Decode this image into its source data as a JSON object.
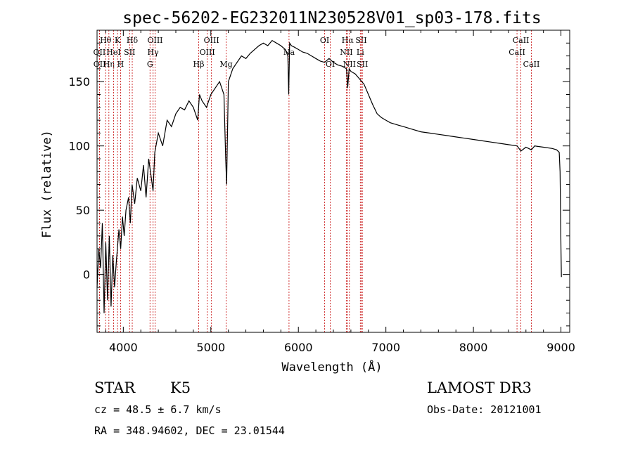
{
  "chart_data": {
    "type": "line",
    "title": "spec-56202-EG232011N230528V01_sp03-178.fits",
    "xlabel": "Wavelength (Å)",
    "ylabel": "Flux (relative)",
    "xlim": [
      3700,
      9100
    ],
    "ylim": [
      -45,
      190
    ],
    "xticks": [
      4000,
      5000,
      6000,
      7000,
      8000,
      9000
    ],
    "yticks": [
      0,
      50,
      100,
      150
    ],
    "grid": false,
    "series": [
      {
        "name": "flux",
        "x": [
          3700,
          3720,
          3740,
          3760,
          3780,
          3800,
          3820,
          3840,
          3860,
          3880,
          3900,
          3920,
          3950,
          3970,
          3990,
          4010,
          4030,
          4060,
          4080,
          4100,
          4130,
          4160,
          4200,
          4230,
          4260,
          4290,
          4320,
          4340,
          4360,
          4400,
          4450,
          4500,
          4550,
          4600,
          4650,
          4700,
          4750,
          4800,
          4850,
          4870,
          4900,
          4950,
          5000,
          5050,
          5100,
          5150,
          5170,
          5180,
          5200,
          5250,
          5300,
          5350,
          5400,
          5450,
          5500,
          5550,
          5600,
          5650,
          5700,
          5750,
          5800,
          5850,
          5880,
          5890,
          5900,
          5920,
          5950,
          6000,
          6050,
          6100,
          6150,
          6200,
          6250,
          6300,
          6350,
          6400,
          6450,
          6500,
          6550,
          6563,
          6580,
          6600,
          6650,
          6700,
          6750,
          6800,
          6850,
          6900,
          6950,
          7000,
          7050,
          7100,
          7150,
          7200,
          7300,
          7400,
          7500,
          7600,
          7700,
          7800,
          7900,
          8000,
          8100,
          8200,
          8300,
          8400,
          8500,
          8542,
          8600,
          8662,
          8700,
          8800,
          8900,
          8950,
          8980,
          8990,
          9000,
          9005
        ],
        "values": [
          -10,
          20,
          5,
          40,
          -30,
          25,
          -20,
          30,
          -25,
          15,
          -10,
          10,
          35,
          20,
          45,
          30,
          50,
          60,
          40,
          70,
          55,
          75,
          65,
          85,
          60,
          90,
          75,
          65,
          95,
          110,
          100,
          120,
          115,
          125,
          130,
          128,
          135,
          130,
          120,
          140,
          135,
          130,
          140,
          145,
          150,
          140,
          90,
          70,
          150,
          160,
          165,
          170,
          168,
          172,
          175,
          178,
          180,
          178,
          182,
          180,
          178,
          175,
          170,
          140,
          180,
          178,
          177,
          175,
          173,
          172,
          170,
          168,
          166,
          165,
          168,
          165,
          163,
          162,
          160,
          145,
          160,
          158,
          156,
          152,
          148,
          140,
          132,
          125,
          122,
          120,
          118,
          117,
          116,
          115,
          113,
          111,
          110,
          109,
          108,
          107,
          106,
          105,
          104,
          103,
          102,
          101,
          100,
          96,
          99,
          97,
          100,
          99,
          98,
          97,
          95,
          80,
          20,
          -2
        ]
      }
    ],
    "spectral_lines": [
      {
        "label": "Hθ",
        "wavelength": 3798,
        "row": 0
      },
      {
        "label": "OII",
        "wavelength": 3727,
        "row": 1
      },
      {
        "label": "OII",
        "wavelength": 3729,
        "row": 2
      },
      {
        "label": "Hη",
        "wavelength": 3835,
        "row": 2
      },
      {
        "label": "HeI",
        "wavelength": 3889,
        "row": 1
      },
      {
        "label": "K",
        "wavelength": 3934,
        "row": 0
      },
      {
        "label": "H",
        "wavelength": 3969,
        "row": 2
      },
      {
        "label": "SII",
        "wavelength": 4072,
        "row": 1
      },
      {
        "label": "Hδ",
        "wavelength": 4102,
        "row": 0
      },
      {
        "label": "OIII",
        "wavelength": 4363,
        "row": 0
      },
      {
        "label": "Hγ",
        "wavelength": 4340,
        "row": 1
      },
      {
        "label": "G",
        "wavelength": 4305,
        "row": 2
      },
      {
        "label": "Hβ",
        "wavelength": 4861,
        "row": 2
      },
      {
        "label": "OIII",
        "wavelength": 5007,
        "row": 0
      },
      {
        "label": "OIII",
        "wavelength": 4959,
        "row": 1
      },
      {
        "label": "Mg",
        "wavelength": 5175,
        "row": 2
      },
      {
        "label": "Na",
        "wavelength": 5893,
        "row": 1
      },
      {
        "label": "OI",
        "wavelength": 6300,
        "row": 0
      },
      {
        "label": "OI",
        "wavelength": 6364,
        "row": 2
      },
      {
        "label": "Hα",
        "wavelength": 6563,
        "row": 0
      },
      {
        "label": "SII",
        "wavelength": 6717,
        "row": 0
      },
      {
        "label": "NII",
        "wavelength": 6548,
        "row": 1
      },
      {
        "label": "Li",
        "wavelength": 6708,
        "row": 1
      },
      {
        "label": "NII",
        "wavelength": 6583,
        "row": 2
      },
      {
        "label": "SII",
        "wavelength": 6731,
        "row": 2
      },
      {
        "label": "CaII",
        "wavelength": 8542,
        "row": 0
      },
      {
        "label": "CaII",
        "wavelength": 8498,
        "row": 1
      },
      {
        "label": "CaII",
        "wavelength": 8662,
        "row": 2
      }
    ]
  },
  "info": {
    "object_class": "STAR",
    "subclass": "K5",
    "survey": "LAMOST DR3",
    "redshift": "cz = 48.5 ± 6.7 km/s",
    "obs_date": "Obs-Date: 20121001",
    "coords": "RA = 348.94602, DEC =  23.01544"
  }
}
